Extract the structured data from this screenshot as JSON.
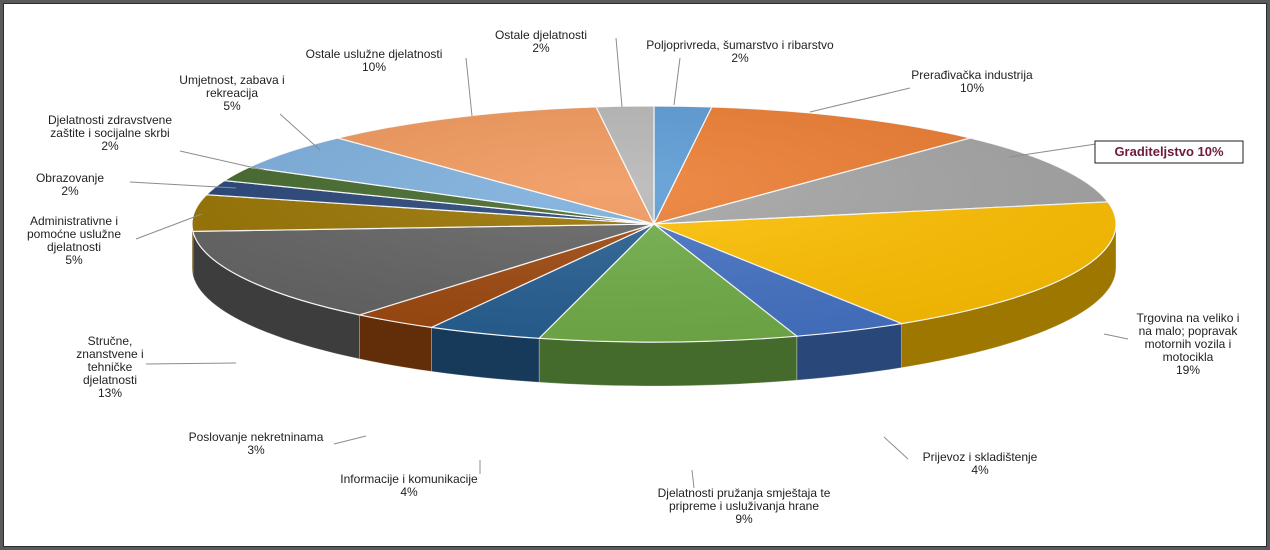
{
  "chart_data": {
    "type": "pie",
    "title": "",
    "legend": "none",
    "slices": [
      {
        "label": [
          "Poljoprivreda, šumarstvo i ribarstvo",
          "2%"
        ],
        "value": 2,
        "color": "#5b9bd5"
      },
      {
        "label": [
          "Prerađivačka industrija",
          "10%"
        ],
        "value": 10,
        "color": "#ed7d31"
      },
      {
        "label": [
          "Graditeljstvo 10%"
        ],
        "value": 10,
        "color": "#a5a5a5",
        "callout": true
      },
      {
        "label": [
          "Trgovina na veliko i",
          "na malo; popravak",
          "motornih vozila i",
          "motocikla",
          "19%"
        ],
        "value": 19,
        "color": "#ffc000"
      },
      {
        "label": [
          "Prijevoz i skladištenje",
          "4%"
        ],
        "value": 4,
        "color": "#4472c4"
      },
      {
        "label": [
          "Djelatnosti pružanja smještaja te",
          "pripreme i usluživanja hrane",
          "9%"
        ],
        "value": 9,
        "color": "#70ad47"
      },
      {
        "label": [
          "Informacije i komunikacije",
          "4%"
        ],
        "value": 4,
        "color": "#255e91"
      },
      {
        "label": [
          "Poslovanje nekretninama",
          "3%"
        ],
        "value": 3,
        "color": "#9e480e"
      },
      {
        "label": [
          "Stručne,",
          "znanstvene i",
          "tehničke",
          "djelatnosti",
          "13%"
        ],
        "value": 13,
        "color": "#636363"
      },
      {
        "label": [
          "Administrativne i",
          "pomoćne uslužne",
          "djelatnosti",
          "5%"
        ],
        "value": 5,
        "color": "#997300"
      },
      {
        "label": [
          "Obrazovanje",
          "2%"
        ],
        "value": 2,
        "color": "#264478"
      },
      {
        "label": [
          "Djelatnosti zdravstvene",
          "zaštite i socijalne skrbi",
          "2%"
        ],
        "value": 2,
        "color": "#43682b"
      },
      {
        "label": [
          "Umjetnost, zabava i",
          "rekreacija",
          "5%"
        ],
        "value": 5,
        "color": "#7cafdd"
      },
      {
        "label": [
          "Ostale uslužne djelatnosti",
          "10%"
        ],
        "value": 10,
        "color": "#f1975a"
      },
      {
        "label": [
          "Ostale djelatnosti",
          "2%"
        ],
        "value": 2,
        "color": "#b7b7b7"
      }
    ]
  }
}
